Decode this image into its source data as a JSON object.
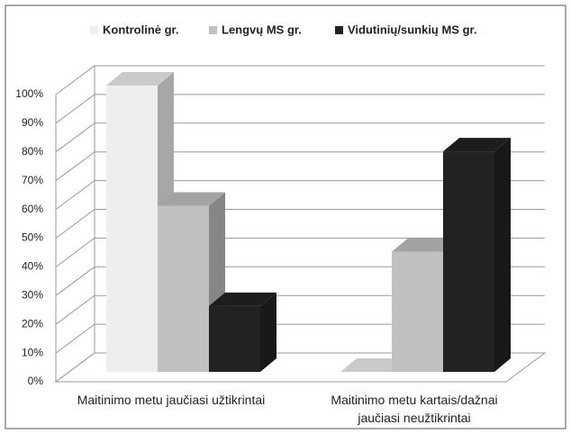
{
  "chart_data": {
    "type": "bar3d",
    "categories": [
      "Maitinimo metu jaučiasi užtikrintai",
      "Maitinimo metu kartais/dažnai jaučiasi neužtikrintai"
    ],
    "series": [
      {
        "name": "Kontrolinė gr.",
        "color": "#eeeeee",
        "values": [
          100,
          0
        ]
      },
      {
        "name": "Lengvų MS gr.",
        "color": "#c0c0c0",
        "values": [
          58,
          42
        ]
      },
      {
        "name": "Vidutinių/sunkių MS gr.",
        "color": "#222222",
        "values": [
          23,
          77
        ]
      }
    ],
    "ylim": [
      0,
      100
    ],
    "yticks": [
      {
        "value": 0,
        "label": "0%"
      },
      {
        "value": 10,
        "label": "10%"
      },
      {
        "value": 20,
        "label": "20%"
      },
      {
        "value": 30,
        "label": "30%"
      },
      {
        "value": 40,
        "label": "40%"
      },
      {
        "value": 50,
        "label": "50%"
      },
      {
        "value": 60,
        "label": "60%"
      },
      {
        "value": 70,
        "label": "70%"
      },
      {
        "value": 80,
        "label": "80%"
      },
      {
        "value": 90,
        "label": "90%"
      },
      {
        "value": 100,
        "label": "100%"
      }
    ],
    "grid": true,
    "legend": "top"
  }
}
